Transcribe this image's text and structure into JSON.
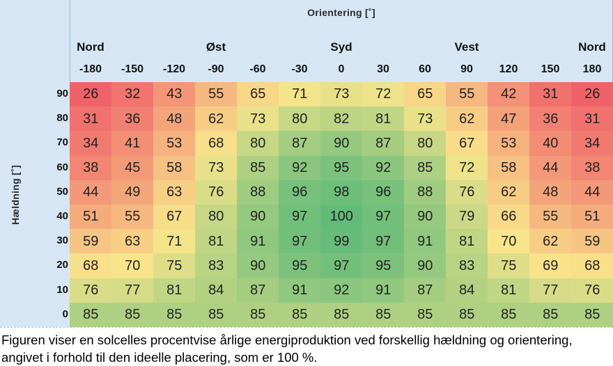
{
  "chart_data": {
    "type": "heatmap",
    "title": "Orientering [˚]",
    "xlabel": "Orientering [˚]",
    "ylabel": "Hældning [˚]",
    "direction_labels": [
      {
        "label": "Nord",
        "at": -180
      },
      {
        "label": "Øst",
        "at": -90
      },
      {
        "label": "Syd",
        "at": 0
      },
      {
        "label": "Vest",
        "at": 90
      },
      {
        "label": "Nord",
        "at": 180
      }
    ],
    "x": [
      -180,
      -150,
      -120,
      -90,
      -60,
      -30,
      0,
      30,
      60,
      90,
      120,
      150,
      180
    ],
    "y": [
      90,
      80,
      70,
      60,
      50,
      40,
      30,
      20,
      10,
      0
    ],
    "values": [
      [
        26,
        32,
        43,
        55,
        65,
        71,
        73,
        72,
        65,
        55,
        42,
        31,
        26
      ],
      [
        31,
        36,
        48,
        62,
        73,
        80,
        82,
        81,
        73,
        62,
        47,
        36,
        31
      ],
      [
        34,
        41,
        53,
        68,
        80,
        87,
        90,
        87,
        80,
        67,
        53,
        40,
        34
      ],
      [
        38,
        45,
        58,
        73,
        85,
        92,
        95,
        92,
        85,
        72,
        58,
        44,
        38
      ],
      [
        44,
        49,
        63,
        76,
        88,
        96,
        98,
        96,
        88,
        76,
        62,
        48,
        44
      ],
      [
        51,
        55,
        67,
        80,
        90,
        97,
        100,
        97,
        90,
        79,
        66,
        55,
        51
      ],
      [
        59,
        63,
        71,
        81,
        91,
        97,
        99,
        97,
        91,
        81,
        70,
        62,
        59
      ],
      [
        68,
        70,
        75,
        83,
        90,
        95,
        97,
        95,
        90,
        83,
        75,
        69,
        68
      ],
      [
        76,
        77,
        81,
        84,
        87,
        91,
        92,
        91,
        87,
        84,
        81,
        77,
        76
      ],
      [
        85,
        85,
        85,
        85,
        85,
        85,
        85,
        85,
        85,
        85,
        85,
        85,
        85
      ]
    ],
    "color_scale": {
      "low": "#f0626a",
      "mid": "#f8e58b",
      "high": "#63bb7a"
    }
  },
  "caption": "Figuren viser en solcelles procentvise årlige energiproduktion ved forskellig hældning og orientering, angivet i forhold til den ideelle placering, som er 100 %."
}
